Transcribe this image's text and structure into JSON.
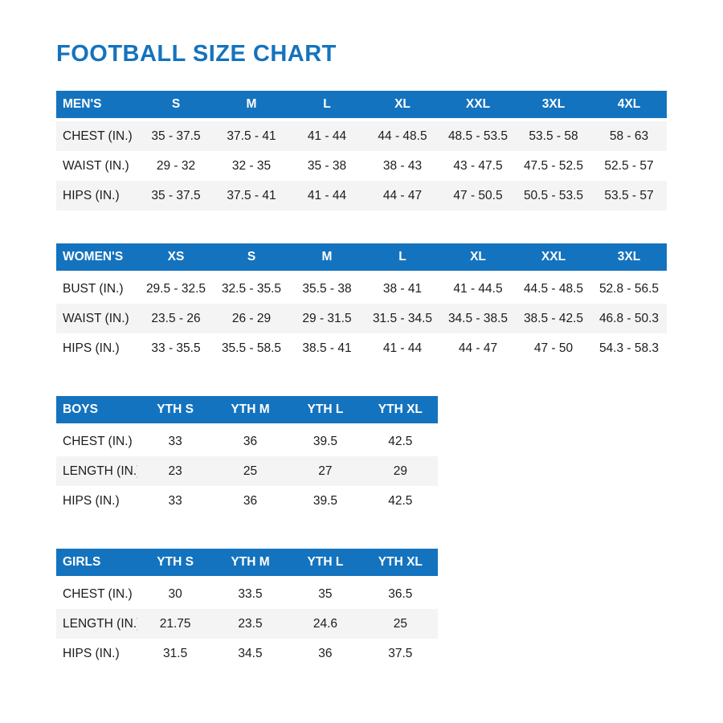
{
  "page": {
    "title": "FOOTBALL SIZE CHART"
  },
  "colors": {
    "accent": "#1473be",
    "row_alt": "#f4f4f5",
    "text": "#1c1c1c",
    "header_text": "#ffffff"
  },
  "tables": [
    {
      "name": "mens",
      "header": [
        "MEN'S",
        "S",
        "M",
        "L",
        "XL",
        "XXL",
        "3XL",
        "4XL"
      ],
      "rows": [
        [
          "CHEST (IN.)",
          "35 - 37.5",
          "37.5 - 41",
          "41 - 44",
          "44 - 48.5",
          "48.5 - 53.5",
          "53.5 - 58",
          "58 - 63"
        ],
        [
          "WAIST (IN.)",
          "29 - 32",
          "32 - 35",
          "35 - 38",
          "38 - 43",
          "43 - 47.5",
          "47.5 - 52.5",
          "52.5 - 57"
        ],
        [
          "HIPS (IN.)",
          "35 - 37.5",
          "37.5 - 41",
          "41 - 44",
          "44 - 47",
          "47 - 50.5",
          "50.5 - 53.5",
          "53.5 - 57"
        ]
      ],
      "gray_rows": [
        0,
        2
      ]
    },
    {
      "name": "womens",
      "header": [
        "WOMEN'S",
        "XS",
        "S",
        "M",
        "L",
        "XL",
        "XXL",
        "3XL"
      ],
      "rows": [
        [
          "BUST (IN.)",
          "29.5 - 32.5",
          "32.5 - 35.5",
          "35.5 - 38",
          "38 - 41",
          "41 - 44.5",
          "44.5 - 48.5",
          "52.8 - 56.5"
        ],
        [
          "WAIST (IN.)",
          "23.5 - 26",
          "26 - 29",
          "29 - 31.5",
          "31.5 - 34.5",
          "34.5 - 38.5",
          "38.5 - 42.5",
          "46.8 - 50.3"
        ],
        [
          "HIPS (IN.)",
          "33 - 35.5",
          "35.5 - 58.5",
          "38.5 - 41",
          "41 - 44",
          "44 - 47",
          "47 - 50",
          "54.3 - 58.3"
        ]
      ],
      "gray_rows": [
        1
      ]
    },
    {
      "name": "boys",
      "header": [
        "BOYS",
        "YTH S",
        "YTH M",
        "YTH L",
        "YTH XL"
      ],
      "rows": [
        [
          "CHEST (IN.)",
          "33",
          "36",
          "39.5",
          "42.5"
        ],
        [
          "LENGTH (IN.)",
          "23",
          "25",
          "27",
          "29"
        ],
        [
          "HIPS (IN.)",
          "33",
          "36",
          "39.5",
          "42.5"
        ]
      ],
      "gray_rows": [
        1
      ]
    },
    {
      "name": "girls",
      "header": [
        "GIRLS",
        "YTH S",
        "YTH M",
        "YTH L",
        "YTH XL"
      ],
      "rows": [
        [
          "CHEST (IN.)",
          "30",
          "33.5",
          "35",
          "36.5"
        ],
        [
          "LENGTH (IN.)",
          "21.75",
          "23.5",
          "24.6",
          "25"
        ],
        [
          "HIPS (IN.)",
          "31.5",
          "34.5",
          "36",
          "37.5"
        ]
      ],
      "gray_rows": [
        1
      ]
    }
  ]
}
